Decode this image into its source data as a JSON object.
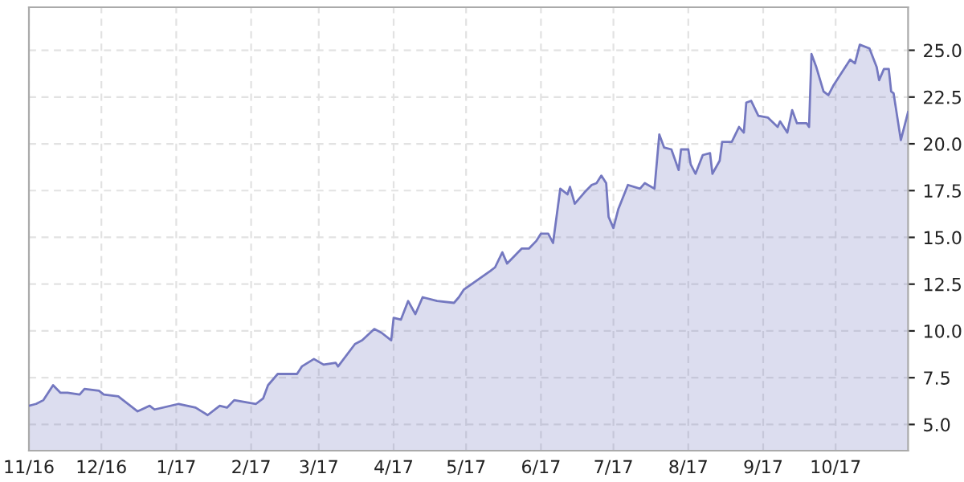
{
  "chart_data": {
    "type": "area",
    "x": [
      "2016-11-01",
      "2016-11-04",
      "2016-11-07",
      "2016-11-11",
      "2016-11-14",
      "2016-11-17",
      "2016-11-22",
      "2016-11-24",
      "2016-11-30",
      "2016-12-02",
      "2016-12-08",
      "2016-12-10",
      "2016-12-16",
      "2016-12-21",
      "2016-12-23",
      "2017-01-02",
      "2017-01-09",
      "2017-01-14",
      "2017-01-19",
      "2017-01-22",
      "2017-01-25",
      "2017-02-03",
      "2017-02-06",
      "2017-02-08",
      "2017-02-12",
      "2017-02-20",
      "2017-02-22",
      "2017-02-27",
      "2017-03-03",
      "2017-03-08",
      "2017-03-09",
      "2017-03-16",
      "2017-03-19",
      "2017-03-24",
      "2017-03-27",
      "2017-03-31",
      "2017-04-01",
      "2017-04-04",
      "2017-04-07",
      "2017-04-10",
      "2017-04-13",
      "2017-04-19",
      "2017-04-26",
      "2017-04-28",
      "2017-04-30",
      "2017-05-11",
      "2017-05-13",
      "2017-05-16",
      "2017-05-18",
      "2017-05-24",
      "2017-05-27",
      "2017-05-30",
      "2017-06-01",
      "2017-06-04",
      "2017-06-06",
      "2017-06-09",
      "2017-06-12",
      "2017-06-13",
      "2017-06-15",
      "2017-06-19",
      "2017-06-22",
      "2017-06-24",
      "2017-06-26",
      "2017-06-28",
      "2017-06-29",
      "2017-07-01",
      "2017-07-03",
      "2017-07-07",
      "2017-07-12",
      "2017-07-14",
      "2017-07-18",
      "2017-07-20",
      "2017-07-22",
      "2017-07-25",
      "2017-07-28",
      "2017-07-29",
      "2017-08-01",
      "2017-08-02",
      "2017-08-04",
      "2017-08-07",
      "2017-08-10",
      "2017-08-11",
      "2017-08-14",
      "2017-08-15",
      "2017-08-19",
      "2017-08-22",
      "2017-08-24",
      "2017-08-25",
      "2017-08-27",
      "2017-08-30",
      "2017-09-03",
      "2017-09-07",
      "2017-09-08",
      "2017-09-11",
      "2017-09-13",
      "2017-09-15",
      "2017-09-19",
      "2017-09-20",
      "2017-09-21",
      "2017-09-23",
      "2017-09-26",
      "2017-09-28",
      "2017-09-30",
      "2017-10-03",
      "2017-10-07",
      "2017-10-09",
      "2017-10-11",
      "2017-10-15",
      "2017-10-18",
      "2017-10-19",
      "2017-10-21",
      "2017-10-23",
      "2017-10-24",
      "2017-10-25",
      "2017-10-28",
      "2017-10-31"
    ],
    "series": [
      {
        "color": "#7478c0",
        "values": [
          6.0,
          6.1,
          6.3,
          7.1,
          6.7,
          6.7,
          6.6,
          6.9,
          6.8,
          6.6,
          6.5,
          6.3,
          5.7,
          6.0,
          5.8,
          6.1,
          5.9,
          5.5,
          6.0,
          5.9,
          6.3,
          6.1,
          6.4,
          7.1,
          7.7,
          7.7,
          8.1,
          8.5,
          8.2,
          8.3,
          8.1,
          9.3,
          9.5,
          10.1,
          9.9,
          9.5,
          10.7,
          10.6,
          11.6,
          10.9,
          11.8,
          11.6,
          11.5,
          11.8,
          12.2,
          13.2,
          13.4,
          14.2,
          13.6,
          14.4,
          14.4,
          14.8,
          15.2,
          15.2,
          14.7,
          17.6,
          17.3,
          17.7,
          16.8,
          17.4,
          17.8,
          17.9,
          18.3,
          17.9,
          16.1,
          15.5,
          16.5,
          17.8,
          17.6,
          17.9,
          17.6,
          20.5,
          19.8,
          19.7,
          18.6,
          19.7,
          19.7,
          18.9,
          18.4,
          19.4,
          19.5,
          18.4,
          19.1,
          20.1,
          20.1,
          20.9,
          20.6,
          22.2,
          22.3,
          21.5,
          21.4,
          20.9,
          21.2,
          20.6,
          21.8,
          21.1,
          21.1,
          20.9,
          24.8,
          24.1,
          22.8,
          22.6,
          23.1,
          23.7,
          24.5,
          24.3,
          25.3,
          25.1,
          24.1,
          23.4,
          24.0,
          24.0,
          22.8,
          22.7,
          20.2,
          21.7
        ]
      }
    ],
    "xlim": [
      "2016-11-01",
      "2017-10-31"
    ],
    "xticks": [
      {
        "value": "2016-11-01",
        "label": "11/16"
      },
      {
        "value": "2016-12-01",
        "label": "12/16"
      },
      {
        "value": "2017-01-01",
        "label": "1/17"
      },
      {
        "value": "2017-02-01",
        "label": "2/17"
      },
      {
        "value": "2017-03-01",
        "label": "3/17"
      },
      {
        "value": "2017-04-01",
        "label": "4/17"
      },
      {
        "value": "2017-05-01",
        "label": "5/17"
      },
      {
        "value": "2017-06-01",
        "label": "6/17"
      },
      {
        "value": "2017-07-01",
        "label": "7/17"
      },
      {
        "value": "2017-08-01",
        "label": "8/17"
      },
      {
        "value": "2017-09-01",
        "label": "9/17"
      },
      {
        "value": "2017-10-01",
        "label": "10/17"
      }
    ],
    "ylim": [
      3.6,
      27.3
    ],
    "yticks": [
      {
        "value": 5,
        "label": "5.0"
      },
      {
        "value": 7.5,
        "label": "7.5"
      },
      {
        "value": 10,
        "label": "10.0"
      },
      {
        "value": 12.5,
        "label": "12.5"
      },
      {
        "value": 15,
        "label": "15.0"
      },
      {
        "value": 17.5,
        "label": "17.5"
      },
      {
        "value": 20,
        "label": "20.0"
      },
      {
        "value": 22.5,
        "label": "22.5"
      },
      {
        "value": 25,
        "label": "25.0"
      }
    ],
    "grid": true,
    "legend": false
  }
}
